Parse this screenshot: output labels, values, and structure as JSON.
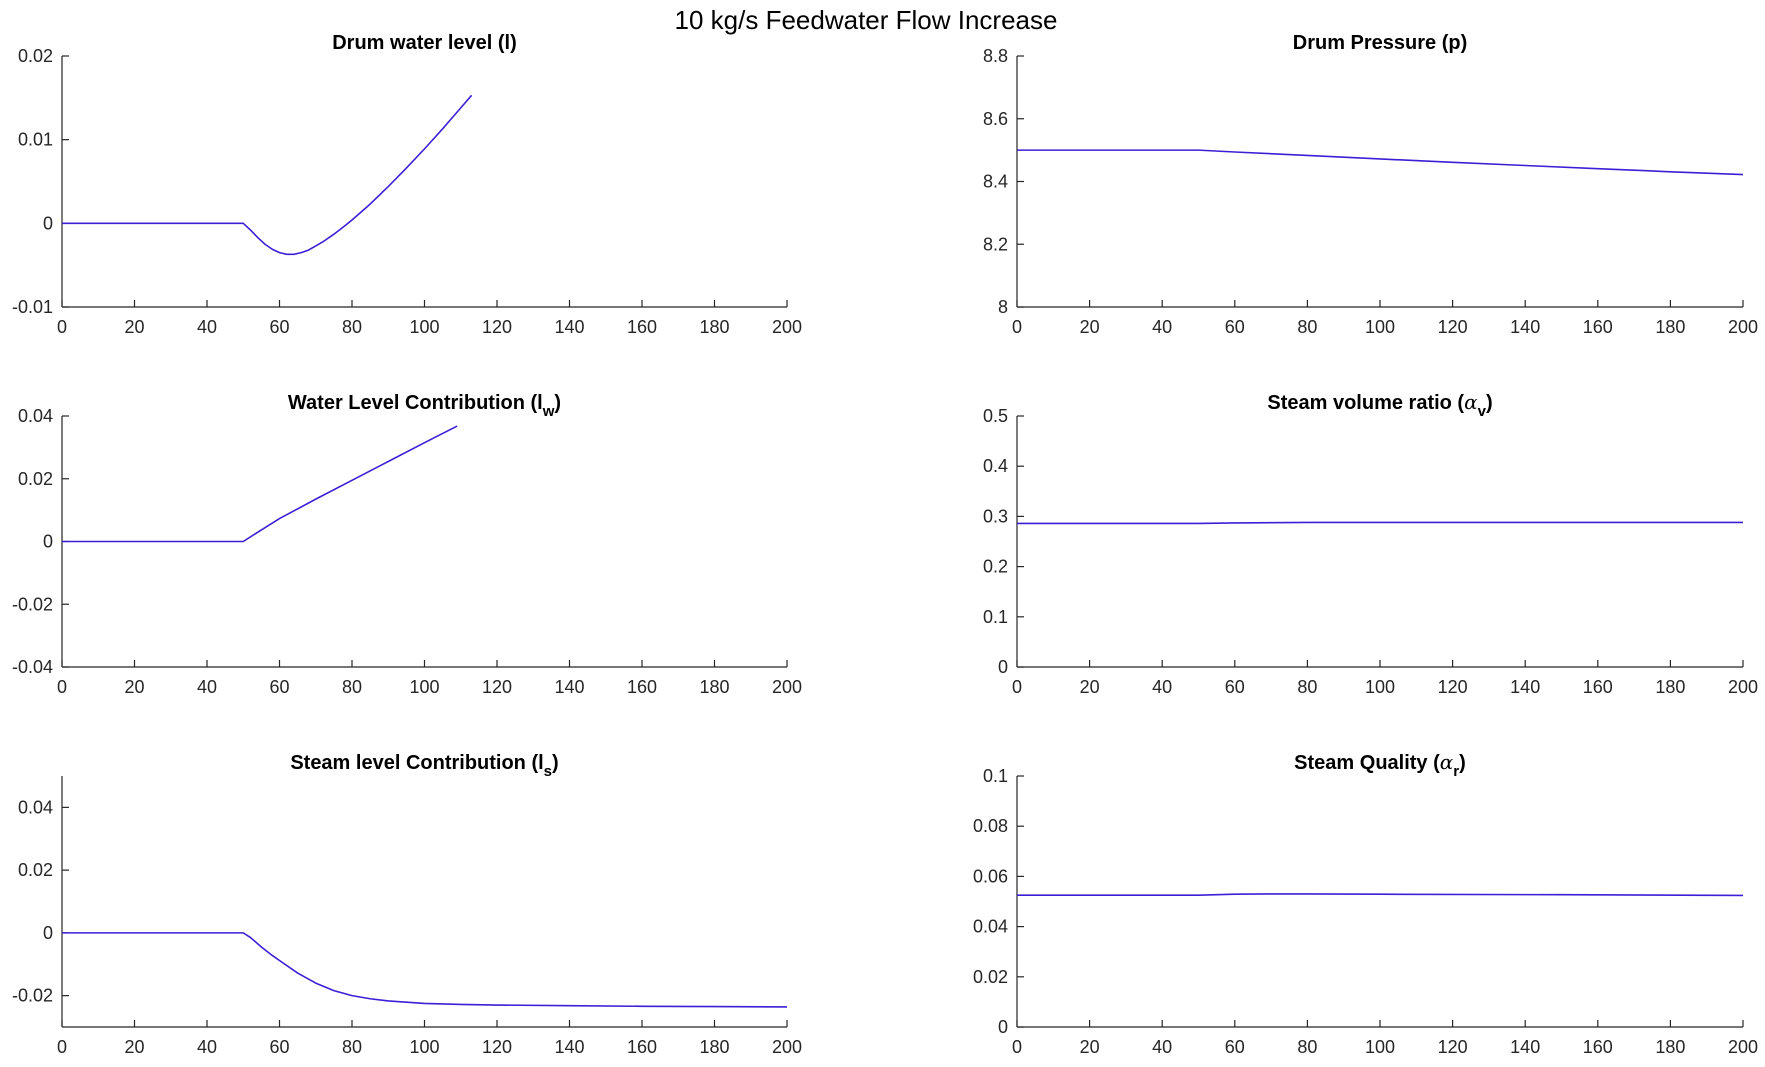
{
  "figure": {
    "suptitle": "10 kg/s Feedwater Flow Increase"
  },
  "chart_data": [
    {
      "type": "line",
      "title_main": "Drum water level (l)",
      "title_sub": "",
      "title_tail": "",
      "xlim": [
        0,
        200
      ],
      "ylim": [
        -0.01,
        0.02
      ],
      "xticks": [
        "0",
        "20",
        "40",
        "60",
        "80",
        "100",
        "120",
        "140",
        "160",
        "180",
        "200"
      ],
      "yticks": [
        "-0.01",
        "0",
        "0.01",
        "0.02"
      ],
      "series": [
        {
          "color": "#3d1fd6",
          "x": [
            0,
            50,
            52,
            54,
            56,
            58,
            60,
            62,
            63,
            64,
            66,
            68,
            70,
            72,
            75,
            78,
            80,
            85,
            90,
            95,
            100,
            105,
            110,
            113
          ],
          "y": [
            0,
            0,
            -0.0008,
            -0.0017,
            -0.0025,
            -0.0031,
            -0.0035,
            -0.0037,
            -0.0037,
            -0.0037,
            -0.0035,
            -0.0032,
            -0.0027,
            -0.0022,
            -0.0013,
            -0.0003,
            0.0004,
            0.0023,
            0.0044,
            0.0066,
            0.0089,
            0.0113,
            0.0138,
            0.0153
          ]
        }
      ]
    },
    {
      "type": "line",
      "title_main": "Drum Pressure (p)",
      "title_sub": "",
      "title_tail": "",
      "xlim": [
        0,
        200
      ],
      "ylim": [
        8,
        8.8
      ],
      "xticks": [
        "0",
        "20",
        "40",
        "60",
        "80",
        "100",
        "120",
        "140",
        "160",
        "180",
        "200"
      ],
      "yticks": [
        "8",
        "8.2",
        "8.4",
        "8.6",
        "8.8"
      ],
      "series": [
        {
          "color": "#3d1fd6",
          "x": [
            0,
            50,
            60,
            80,
            100,
            120,
            140,
            160,
            180,
            200
          ],
          "y": [
            8.5,
            8.5,
            8.494,
            8.483,
            8.472,
            8.461,
            8.451,
            8.441,
            8.431,
            8.422
          ]
        }
      ]
    },
    {
      "type": "line",
      "title_main": "Water Level Contribution (l",
      "title_sub": "w",
      "title_tail": ")",
      "xlim": [
        0,
        200
      ],
      "ylim": [
        -0.04,
        0.04
      ],
      "xticks": [
        "0",
        "20",
        "40",
        "60",
        "80",
        "100",
        "120",
        "140",
        "160",
        "180",
        "200"
      ],
      "yticks": [
        "-0.04",
        "-0.02",
        "0",
        "0.02",
        "0.04"
      ],
      "series": [
        {
          "color": "#3d1fd6",
          "x": [
            0,
            50,
            55,
            60,
            70,
            80,
            90,
            100,
            109
          ],
          "y": [
            0,
            0,
            0.0037,
            0.0073,
            0.0135,
            0.0195,
            0.0255,
            0.0315,
            0.0368
          ]
        }
      ]
    },
    {
      "type": "line",
      "title_main": "Steam volume ratio (",
      "title_sub": "v",
      "title_tail": ")",
      "title_greek": "α",
      "xlim": [
        0,
        200
      ],
      "ylim": [
        0,
        0.5
      ],
      "xticks": [
        "0",
        "20",
        "40",
        "60",
        "80",
        "100",
        "120",
        "140",
        "160",
        "180",
        "200"
      ],
      "yticks": [
        "0",
        "0.1",
        "0.2",
        "0.3",
        "0.4",
        "0.5"
      ],
      "series": [
        {
          "color": "#3d1fd6",
          "x": [
            0,
            50,
            60,
            80,
            100,
            150,
            200
          ],
          "y": [
            0.286,
            0.286,
            0.287,
            0.288,
            0.288,
            0.288,
            0.288
          ]
        }
      ]
    },
    {
      "type": "line",
      "title_main": "Steam level Contribution (l",
      "title_sub": "s",
      "title_tail": ")",
      "xlim": [
        0,
        200
      ],
      "ylim": [
        -0.03,
        0.05
      ],
      "xticks": [
        "0",
        "20",
        "40",
        "60",
        "80",
        "100",
        "120",
        "140",
        "160",
        "180",
        "200"
      ],
      "yticks": [
        "-0.02",
        "0",
        "0.02",
        "0.04"
      ],
      "series": [
        {
          "color": "#3d1fd6",
          "x": [
            0,
            50,
            52,
            55,
            58,
            60,
            65,
            70,
            75,
            80,
            85,
            90,
            100,
            110,
            120,
            140,
            160,
            180,
            200
          ],
          "y": [
            0,
            0,
            -0.0015,
            -0.0045,
            -0.0072,
            -0.0088,
            -0.0128,
            -0.016,
            -0.0184,
            -0.02,
            -0.021,
            -0.0217,
            -0.0225,
            -0.0228,
            -0.023,
            -0.0232,
            -0.0234,
            -0.0235,
            -0.0236
          ]
        }
      ]
    },
    {
      "type": "line",
      "title_main": "Steam Quality (",
      "title_sub": "r",
      "title_tail": ")",
      "title_greek": "α",
      "xlim": [
        0,
        200
      ],
      "ylim": [
        0,
        0.1
      ],
      "xticks": [
        "0",
        "20",
        "40",
        "60",
        "80",
        "100",
        "120",
        "140",
        "160",
        "180",
        "200"
      ],
      "yticks": [
        "0",
        "0.02",
        "0.04",
        "0.06",
        "0.08",
        "0.1"
      ],
      "series": [
        {
          "color": "#3d1fd6",
          "x": [
            0,
            50,
            60,
            70,
            80,
            100,
            150,
            200
          ],
          "y": [
            0.0525,
            0.0525,
            0.0529,
            0.053,
            0.053,
            0.0529,
            0.0527,
            0.0524
          ]
        }
      ]
    }
  ]
}
